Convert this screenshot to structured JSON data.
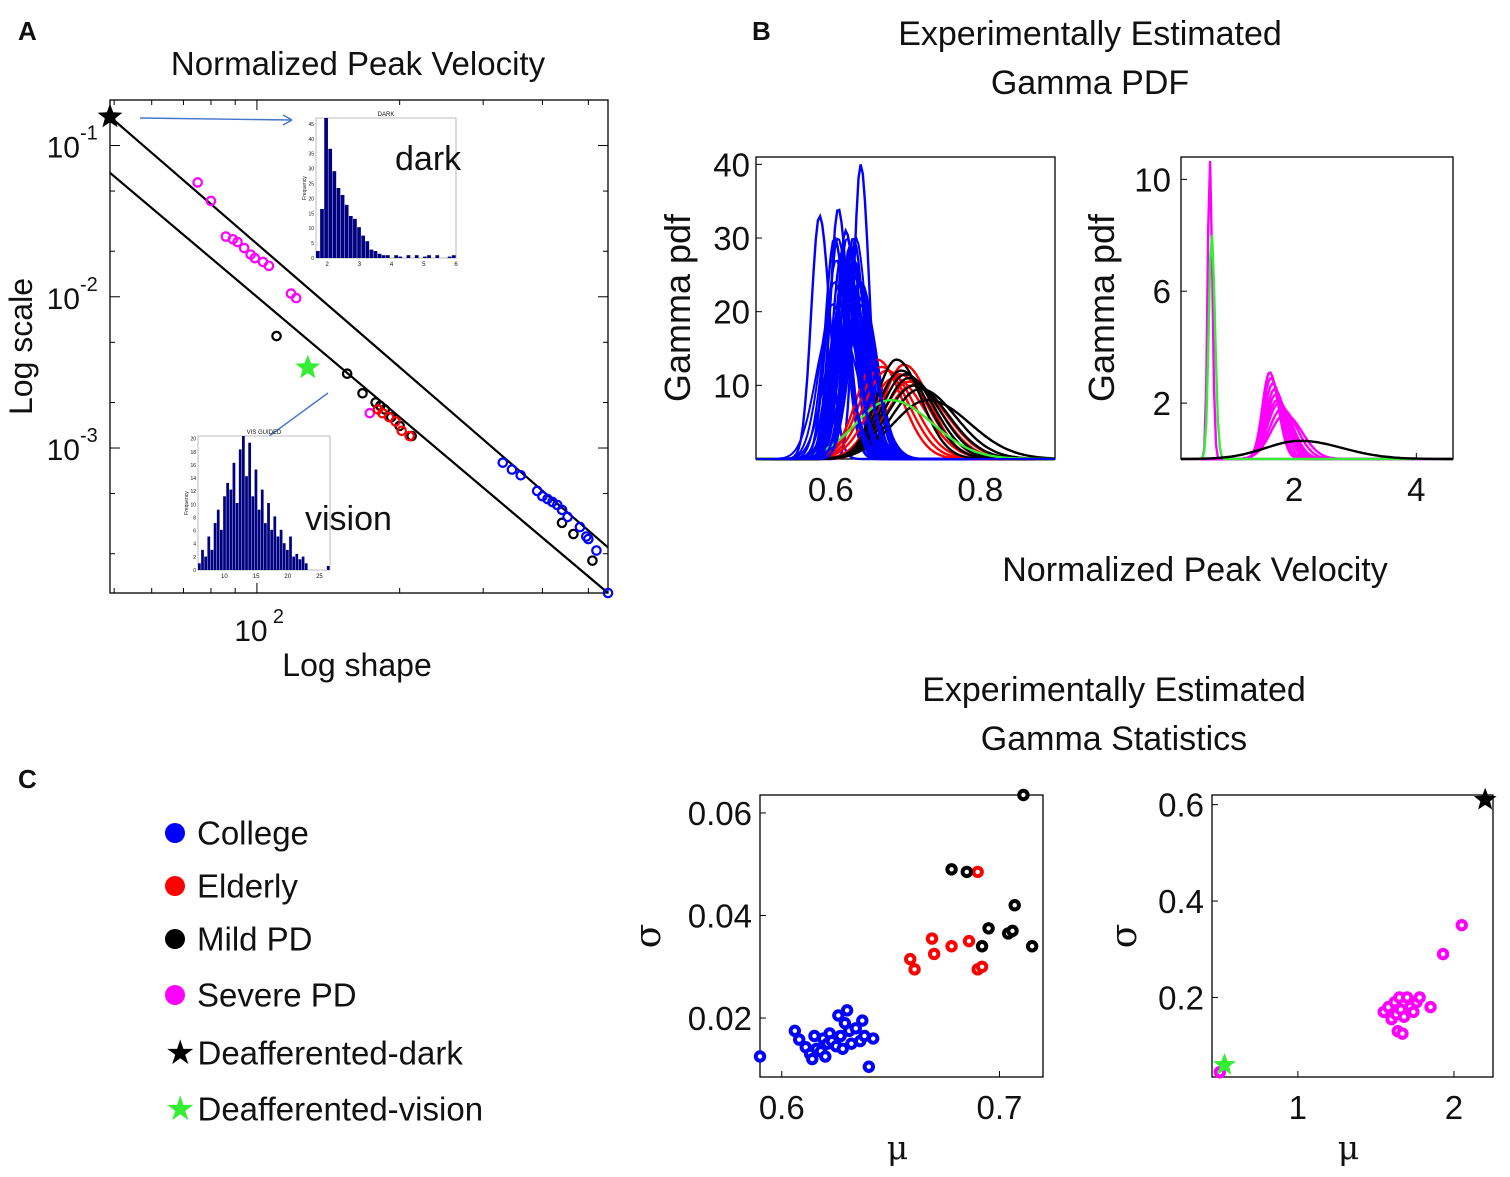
{
  "panel_labels": {
    "a": "A",
    "b": "B",
    "c": "C"
  },
  "panel_a": {
    "title": "Normalized Peak Velocity",
    "inset_dark_label": "dark",
    "inset_vision_label": "vision"
  },
  "panel_b": {
    "title_line1": "Experimentally Estimated",
    "title_line2": "Gamma PDF",
    "shared_xlabel": "Normalized Peak Velocity"
  },
  "panel_c": {
    "title_line1": "Experimentally Estimated",
    "title_line2": "Gamma Statistics"
  },
  "legend": {
    "items": [
      {
        "label": "College",
        "color": "#0000ff",
        "marker": "dot"
      },
      {
        "label": "Elderly",
        "color": "#ff0000",
        "marker": "dot"
      },
      {
        "label": "Mild PD",
        "color": "#000000",
        "marker": "dot"
      },
      {
        "label": "Severe PD",
        "color": "#ff00ff",
        "marker": "dot"
      },
      {
        "label": "Deafferented-dark",
        "color": "#000000",
        "marker": "star"
      },
      {
        "label": "Deafferented-vision",
        "color": "#33ee33",
        "marker": "star"
      }
    ]
  },
  "colors": {
    "college": "#0000ff",
    "elderly": "#ff0000",
    "mild_pd": "#000000",
    "severe_pd": "#ff00ff",
    "deaff_dark": "#000000",
    "deaff_vision": "#33ee33",
    "histogram": "#000080",
    "arrow": "#4477cc"
  },
  "chart_data": [
    {
      "id": "A",
      "type": "scatter",
      "title": "Normalized Peak Velocity",
      "xlabel": "Log shape",
      "ylabel": "Log scale",
      "xscale": "log",
      "yscale": "log",
      "xlim": [
        49,
        550
      ],
      "ylim": [
        0.00011,
        0.2
      ],
      "xticks": [
        {
          "value": 100,
          "label": "10^2"
        }
      ],
      "yticks": [
        {
          "value": 0.1,
          "label": "10^-1"
        },
        {
          "value": 0.01,
          "label": "10^-2"
        },
        {
          "value": 0.001,
          "label": "10^-3"
        }
      ],
      "lines": [
        {
          "name": "upper fit",
          "points": [
            [
              49,
              0.155
            ],
            [
              550,
              0.00022
            ]
          ]
        },
        {
          "name": "lower fit",
          "points": [
            [
              49,
              0.066
            ],
            [
              550,
              0.00011
            ]
          ]
        }
      ],
      "series": [
        {
          "name": "Severe PD",
          "color": "#ff00ff",
          "points": [
            [
              75,
              0.057
            ],
            [
              80,
              0.043
            ],
            [
              86,
              0.025
            ],
            [
              89,
              0.024
            ],
            [
              91,
              0.023
            ],
            [
              94,
              0.021
            ],
            [
              97,
              0.019
            ],
            [
              99,
              0.018
            ],
            [
              103,
              0.017
            ],
            [
              106,
              0.016
            ],
            [
              118,
              0.0105
            ],
            [
              121,
              0.0098
            ],
            [
              173,
              0.0017
            ]
          ]
        },
        {
          "name": "Mild PD",
          "color": "#000000",
          "points": [
            [
              110,
              0.0055
            ],
            [
              155,
              0.0031
            ],
            [
              167,
              0.0023
            ],
            [
              178,
              0.002
            ],
            [
              182,
              0.0019
            ],
            [
              186,
              0.0018
            ],
            [
              192,
              0.0016
            ],
            [
              200,
              0.0014
            ],
            [
              212,
              0.0012
            ],
            [
              440,
              0.00032
            ],
            [
              465,
              0.00027
            ],
            [
              510,
              0.00018
            ]
          ]
        },
        {
          "name": "Elderly",
          "color": "#ff0000",
          "points": [
            [
              180,
              0.0018
            ],
            [
              184,
              0.0017
            ],
            [
              190,
              0.0016
            ],
            [
              196,
              0.0015
            ],
            [
              202,
              0.0013
            ],
            [
              210,
              0.0012
            ]
          ]
        },
        {
          "name": "College",
          "color": "#0000ff",
          "points": [
            [
              330,
              0.0008
            ],
            [
              345,
              0.00072
            ],
            [
              360,
              0.00066
            ],
            [
              390,
              0.00052
            ],
            [
              400,
              0.00048
            ],
            [
              410,
              0.00046
            ],
            [
              420,
              0.00044
            ],
            [
              430,
              0.00042
            ],
            [
              440,
              0.00039
            ],
            [
              452,
              0.00035
            ],
            [
              480,
              0.0003
            ],
            [
              495,
              0.00026
            ],
            [
              500,
              0.00025
            ],
            [
              520,
              0.00021
            ],
            [
              550,
              0.00011
            ]
          ]
        },
        {
          "name": "Deafferented-dark",
          "color": "#000000",
          "marker": "star",
          "points": [
            [
              49,
              0.155
            ]
          ]
        },
        {
          "name": "Deafferented-vision",
          "color": "#33ee33",
          "marker": "star",
          "points": [
            [
              128,
              0.0034
            ]
          ]
        }
      ],
      "insets": [
        {
          "name": "dark histogram",
          "title": "DARK",
          "ylabel": "Frequency",
          "xticks": [
            2,
            3,
            4,
            5,
            6
          ],
          "yticks": [
            0,
            5,
            10,
            15,
            20,
            25,
            30,
            35,
            40,
            45
          ]
        },
        {
          "name": "vision histogram",
          "title": "VIS GUIDED",
          "ylabel": "Frequency",
          "xticks": [
            10,
            15,
            20,
            25
          ],
          "yticks": [
            0,
            2,
            4,
            6,
            8,
            10,
            12,
            14,
            16,
            18,
            20
          ]
        }
      ]
    },
    {
      "id": "B-left",
      "type": "line",
      "xlabel": "Normalized Peak Velocity",
      "ylabel": "Gamma pdf",
      "xlim": [
        0.5,
        0.9
      ],
      "ylim": [
        0,
        41
      ],
      "xticks": [
        0.6,
        0.8
      ],
      "yticks": [
        10,
        20,
        30,
        40
      ],
      "series": [
        {
          "name": "College",
          "color": "#0000ff",
          "mus": [
            0.585,
            0.605,
            0.61,
            0.615,
            0.618,
            0.62,
            0.622,
            0.624,
            0.626,
            0.628,
            0.63,
            0.632,
            0.635,
            0.638,
            0.64,
            0.642
          ],
          "peaks": [
            33,
            30,
            34,
            28,
            26,
            31,
            27,
            24,
            29,
            23,
            30,
            26,
            25,
            24,
            40,
            22
          ]
        },
        {
          "name": "Elderly",
          "color": "#ff0000",
          "mus": [
            0.662,
            0.668,
            0.675,
            0.685,
            0.692,
            0.698,
            0.705,
            0.71
          ],
          "peaks": [
            13.5,
            12.5,
            12,
            11,
            11.5,
            12.8,
            10.5,
            10
          ]
        },
        {
          "name": "Mild PD",
          "color": "#000000",
          "mus": [
            0.688,
            0.694,
            0.7,
            0.705,
            0.712,
            0.72,
            0.73
          ],
          "peaks": [
            13.5,
            12,
            11.5,
            11,
            10,
            9.5,
            8
          ]
        },
        {
          "name": "Deafferented-vision",
          "color": "#33ee33",
          "mus": [
            0.68
          ],
          "peaks": [
            8
          ]
        }
      ]
    },
    {
      "id": "B-right",
      "type": "line",
      "xlabel": "Normalized Peak Velocity",
      "ylabel": "Gamma pdf",
      "xlim": [
        0.15,
        4.6
      ],
      "ylim": [
        0,
        10.8
      ],
      "xticks": [
        2,
        4
      ],
      "yticks": [
        2,
        6,
        10
      ],
      "series": [
        {
          "name": "Severe PD",
          "color": "#ff00ff",
          "mus": [
            0.62,
            1.6,
            1.62,
            1.65,
            1.68,
            1.7,
            1.72,
            1.75,
            1.8,
            1.85
          ],
          "peaks": [
            10.8,
            3.1,
            2.9,
            2.7,
            2.5,
            2.3,
            2.1,
            2.0,
            1.8,
            1.6
          ]
        },
        {
          "name": "Deafferented-vision",
          "color": "#33ee33",
          "mus": [
            0.65
          ],
          "peaks": [
            8.1
          ]
        },
        {
          "name": "Deafferented-dark",
          "color": "#000000",
          "mus": [
            2.1
          ],
          "peaks": [
            0.65
          ]
        }
      ]
    },
    {
      "id": "C-left",
      "type": "scatter",
      "xlabel": "μ",
      "ylabel": "σ",
      "xlim": [
        0.59,
        0.72
      ],
      "ylim": [
        0.0085,
        0.0635
      ],
      "xticks": [
        0.6,
        0.7
      ],
      "yticks": [
        0.02,
        0.04,
        0.06
      ],
      "series": [
        {
          "name": "College",
          "color": "#0000ff",
          "points": [
            [
              0.59,
              0.0125
            ],
            [
              0.606,
              0.0175
            ],
            [
              0.608,
              0.0158
            ],
            [
              0.611,
              0.0143
            ],
            [
              0.613,
              0.013
            ],
            [
              0.614,
              0.012
            ],
            [
              0.615,
              0.0165
            ],
            [
              0.616,
              0.014
            ],
            [
              0.618,
              0.0135
            ],
            [
              0.619,
              0.016
            ],
            [
              0.62,
              0.0125
            ],
            [
              0.621,
              0.015
            ],
            [
              0.622,
              0.017
            ],
            [
              0.623,
              0.0155
            ],
            [
              0.625,
              0.0145
            ],
            [
              0.626,
              0.0205
            ],
            [
              0.627,
              0.0165
            ],
            [
              0.628,
              0.014
            ],
            [
              0.629,
              0.019
            ],
            [
              0.63,
              0.0215
            ],
            [
              0.631,
              0.0175
            ],
            [
              0.632,
              0.015
            ],
            [
              0.634,
              0.018
            ],
            [
              0.636,
              0.0155
            ],
            [
              0.637,
              0.0195
            ],
            [
              0.638,
              0.0165
            ],
            [
              0.64,
              0.0105
            ],
            [
              0.642,
              0.016
            ]
          ]
        },
        {
          "name": "Elderly",
          "color": "#ff0000",
          "points": [
            [
              0.659,
              0.0315
            ],
            [
              0.661,
              0.0295
            ],
            [
              0.669,
              0.0355
            ],
            [
              0.67,
              0.0325
            ],
            [
              0.678,
              0.034
            ],
            [
              0.69,
              0.0485
            ],
            [
              0.69,
              0.0295
            ],
            [
              0.692,
              0.03
            ],
            [
              0.686,
              0.035
            ]
          ]
        },
        {
          "name": "Mild PD",
          "color": "#000000",
          "points": [
            [
              0.678,
              0.049
            ],
            [
              0.685,
              0.0485
            ],
            [
              0.692,
              0.034
            ],
            [
              0.695,
              0.0375
            ],
            [
              0.704,
              0.0365
            ],
            [
              0.706,
              0.037
            ],
            [
              0.707,
              0.042
            ],
            [
              0.711,
              0.0635
            ],
            [
              0.715,
              0.034
            ]
          ]
        }
      ]
    },
    {
      "id": "C-right",
      "type": "scatter",
      "xlabel": "μ",
      "ylabel": "σ",
      "xlim": [
        0.45,
        2.25
      ],
      "ylim": [
        0.035,
        0.62
      ],
      "xticks": [
        1,
        2
      ],
      "yticks": [
        0.2,
        0.4,
        0.6
      ],
      "series": [
        {
          "name": "Severe PD",
          "color": "#ff00ff",
          "points": [
            [
              0.5,
              0.045
            ],
            [
              1.55,
              0.17
            ],
            [
              1.58,
              0.18
            ],
            [
              1.6,
              0.155
            ],
            [
              1.62,
              0.19
            ],
            [
              1.63,
              0.165
            ],
            [
              1.64,
              0.13
            ],
            [
              1.65,
              0.2
            ],
            [
              1.66,
              0.175
            ],
            [
              1.67,
              0.125
            ],
            [
              1.68,
              0.16
            ],
            [
              1.7,
              0.2
            ],
            [
              1.72,
              0.18
            ],
            [
              1.74,
              0.17
            ],
            [
              1.76,
              0.19
            ],
            [
              1.78,
              0.2
            ],
            [
              1.85,
              0.18
            ],
            [
              1.93,
              0.29
            ],
            [
              2.05,
              0.35
            ]
          ]
        },
        {
          "name": "Deafferented-vision",
          "color": "#33ee33",
          "marker": "star",
          "points": [
            [
              0.53,
              0.06
            ]
          ]
        },
        {
          "name": "Deafferented-dark",
          "color": "#000000",
          "marker": "star",
          "points": [
            [
              2.2,
              0.61
            ]
          ]
        }
      ]
    }
  ]
}
